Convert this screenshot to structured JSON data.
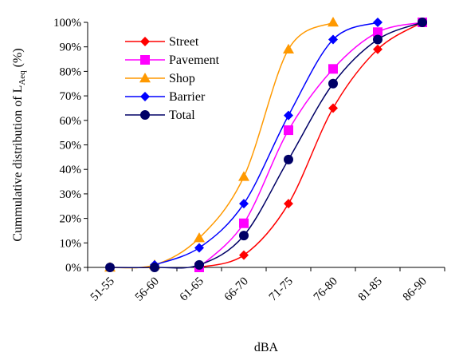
{
  "chart_data": {
    "type": "line",
    "title": "",
    "xlabel": "dBA",
    "ylabel": {
      "main": "Cummulative distribution of L",
      "subscript": "Aeq",
      "suffix": " (%)"
    },
    "categories": [
      "51-55",
      "56-60",
      "61-65",
      "66-70",
      "71-75",
      "76-80",
      "81-85",
      "86-90"
    ],
    "ylim": [
      0,
      100
    ],
    "yticks": [
      "0%",
      "10%",
      "20%",
      "30%",
      "40%",
      "50%",
      "60%",
      "70%",
      "80%",
      "90%",
      "100%"
    ],
    "grid": false,
    "legend_position": "top-left",
    "series": [
      {
        "name": "Street",
        "color": "#ff0000",
        "marker": "diamond",
        "x": [
          3,
          4,
          5,
          6,
          7,
          8
        ],
        "values": [
          0,
          5,
          26,
          65,
          89,
          100
        ]
      },
      {
        "name": "Pavement",
        "color": "#ff00ff",
        "marker": "square",
        "x": [
          3,
          4,
          5,
          6,
          7,
          8
        ],
        "values": [
          0,
          18,
          56,
          81,
          96,
          100
        ]
      },
      {
        "name": "Shop",
        "color": "#ff9900",
        "marker": "triangle",
        "x": [
          1,
          2,
          3,
          4,
          5,
          6
        ],
        "values": [
          0,
          1,
          12,
          37,
          89,
          100
        ]
      },
      {
        "name": "Barrier",
        "color": "#0000ff",
        "marker": "diamond",
        "x": [
          2,
          3,
          4,
          5,
          6,
          7
        ],
        "values": [
          1,
          8,
          26,
          62,
          93,
          100
        ]
      },
      {
        "name": "Total",
        "color": "#000066",
        "marker": "circle",
        "x": [
          1,
          2,
          3,
          4,
          5,
          6,
          7,
          8
        ],
        "values": [
          0,
          0,
          1,
          13,
          44,
          75,
          93,
          100
        ]
      }
    ]
  }
}
